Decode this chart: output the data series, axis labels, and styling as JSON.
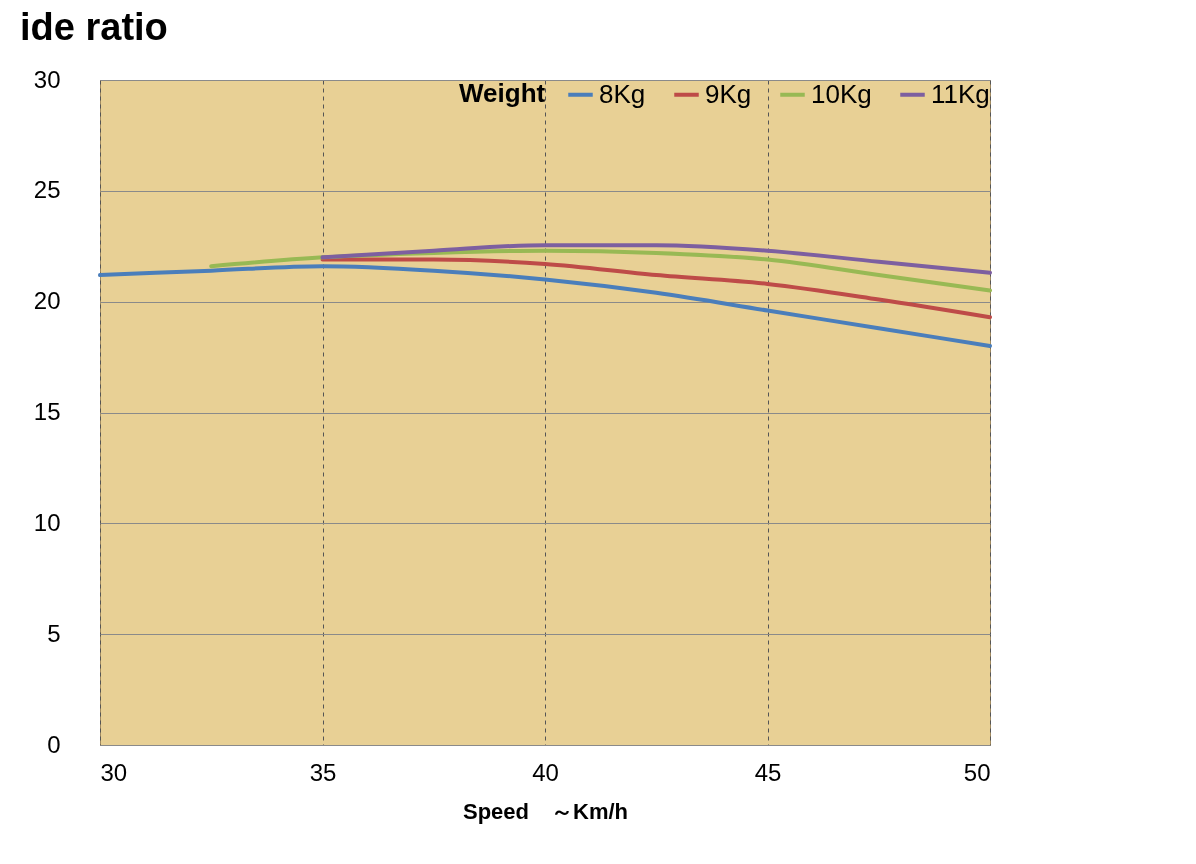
{
  "chart_data": {
    "type": "line",
    "title": "ide ratio",
    "xlabel": "Speed　～Km/h",
    "legend_title": "Weight",
    "legend": "top right",
    "grid": true,
    "xlim": [
      30,
      50
    ],
    "xticks": [
      30,
      35,
      40,
      45,
      50
    ],
    "ylim": [
      0,
      30
    ],
    "yticks": [
      0,
      5,
      10,
      15,
      20,
      25,
      30
    ],
    "series": [
      {
        "name": "8Kg",
        "color": "#4a7ebb",
        "x": [
          30,
          32.5,
          35,
          37.5,
          40,
          42.5,
          45,
          47.5,
          50
        ],
        "values": [
          21.2,
          21.4,
          21.6,
          21.4,
          21.0,
          20.4,
          19.6,
          18.8,
          18.0
        ]
      },
      {
        "name": "9Kg",
        "color": "#be4b48",
        "x": [
          35,
          37.5,
          40,
          42.5,
          45,
          47.5,
          50
        ],
        "values": [
          21.9,
          21.9,
          21.7,
          21.2,
          20.8,
          20.1,
          19.3
        ]
      },
      {
        "name": "10Kg",
        "color": "#98b954",
        "x": [
          32.5,
          35,
          37.5,
          40,
          42.5,
          45,
          47.5,
          50
        ],
        "values": [
          21.6,
          22.0,
          22.2,
          22.3,
          22.2,
          21.9,
          21.2,
          20.5
        ]
      },
      {
        "name": "11Kg",
        "color": "#7d5fa0",
        "x": [
          35,
          37.5,
          40,
          42.5,
          45,
          47.5,
          50
        ],
        "values": [
          22.0,
          22.3,
          22.55,
          22.55,
          22.3,
          21.8,
          21.3
        ]
      }
    ]
  }
}
